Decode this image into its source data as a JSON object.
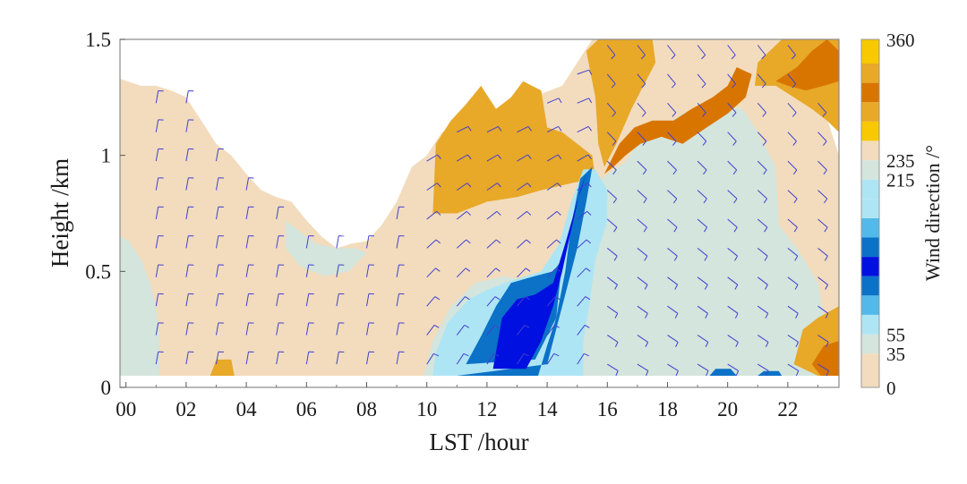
{
  "chart_data": {
    "type": "heatmap",
    "title": "",
    "xlabel": "LST /hour",
    "ylabel": "Height /km",
    "xlim": [
      -0.2,
      23.7
    ],
    "ylim": [
      0,
      1.5
    ],
    "x_ticks": [
      "00",
      "02",
      "04",
      "06",
      "08",
      "10",
      "12",
      "14",
      "16",
      "18",
      "20",
      "22"
    ],
    "x_tick_values": [
      0,
      2,
      4,
      6,
      8,
      10,
      12,
      14,
      16,
      18,
      20,
      22
    ],
    "y_ticks": [
      "0",
      "0.5",
      "1",
      "1.5"
    ],
    "y_tick_values": [
      0,
      0.5,
      1,
      1.5
    ],
    "colorbar": {
      "label": "Wind direction /°",
      "tick_labels": [
        "0",
        "35",
        "55",
        "215",
        "235",
        "360"
      ],
      "tick_values": [
        0,
        35,
        55,
        215,
        235,
        360
      ],
      "levels": [
        {
          "from": 0,
          "to": 35,
          "color": "#f2dcbd"
        },
        {
          "from": 35,
          "to": 55,
          "color": "#d3e5dc"
        },
        {
          "from": 55,
          "to": 75,
          "color": "#aee5f5"
        },
        {
          "from": 75,
          "to": 95,
          "color": "#52b9ea"
        },
        {
          "from": 95,
          "to": 115,
          "color": "#0b72c7"
        },
        {
          "from": 115,
          "to": 135,
          "color": "#0010e0"
        },
        {
          "from": 135,
          "to": 155,
          "color": "#0b72c7"
        },
        {
          "from": 155,
          "to": 175,
          "color": "#52b9ea"
        },
        {
          "from": 175,
          "to": 195,
          "color": "#aee5f5"
        },
        {
          "from": 195,
          "to": 215,
          "color": "#aee5f5"
        },
        {
          "from": 215,
          "to": 235,
          "color": "#d3e5dc"
        },
        {
          "from": 235,
          "to": 255,
          "color": "#f2dcbd"
        },
        {
          "from": 255,
          "to": 275,
          "color": "#f8c800"
        },
        {
          "from": 275,
          "to": 295,
          "color": "#e8a828"
        },
        {
          "from": 295,
          "to": 315,
          "color": "#d87500"
        },
        {
          "from": 315,
          "to": 335,
          "color": "#e8a828"
        },
        {
          "from": 335,
          "to": 360,
          "color": "#f8c800"
        }
      ]
    },
    "regions": [
      {
        "name": "data-coverage-beige",
        "color": "#f2dcbd",
        "points": [
          [
            -0.2,
            0.05
          ],
          [
            23.7,
            0.05
          ],
          [
            23.7,
            1.0
          ],
          [
            23.2,
            1.2
          ],
          [
            22.5,
            1.5
          ],
          [
            15.5,
            1.5
          ],
          [
            14.5,
            1.3
          ],
          [
            13.5,
            1.25
          ],
          [
            12.5,
            1.15
          ],
          [
            11.5,
            1.15
          ],
          [
            10.5,
            1.1
          ],
          [
            10,
            1.0
          ],
          [
            9.5,
            0.95
          ],
          [
            9,
            0.8
          ],
          [
            8.5,
            0.7
          ],
          [
            8,
            0.63
          ],
          [
            7.5,
            0.62
          ],
          [
            7,
            0.6
          ],
          [
            6.5,
            0.65
          ],
          [
            6,
            0.72
          ],
          [
            5.5,
            0.8
          ],
          [
            5,
            0.82
          ],
          [
            4.5,
            0.85
          ],
          [
            4,
            0.92
          ],
          [
            3.5,
            1.0
          ],
          [
            3,
            1.05
          ],
          [
            2.5,
            1.15
          ],
          [
            2,
            1.25
          ],
          [
            1.5,
            1.28
          ],
          [
            1,
            1.3
          ],
          [
            0.5,
            1.3
          ],
          [
            -0.2,
            1.33
          ]
        ]
      },
      {
        "name": "green-left-low",
        "color": "#d3e5dc",
        "points": [
          [
            -0.2,
            0.05
          ],
          [
            1.1,
            0.05
          ],
          [
            1.1,
            0.22
          ],
          [
            1.0,
            0.35
          ],
          [
            0.8,
            0.45
          ],
          [
            0.5,
            0.55
          ],
          [
            0.1,
            0.63
          ],
          [
            -0.2,
            0.65
          ]
        ]
      },
      {
        "name": "green-morning-blob",
        "color": "#d3e5dc",
        "points": [
          [
            5.3,
            0.72
          ],
          [
            5.7,
            0.68
          ],
          [
            6.3,
            0.62
          ],
          [
            7.0,
            0.6
          ],
          [
            7.6,
            0.6
          ],
          [
            8.0,
            0.58
          ],
          [
            7.4,
            0.5
          ],
          [
            6.6,
            0.48
          ],
          [
            5.8,
            0.52
          ],
          [
            5.3,
            0.6
          ]
        ]
      },
      {
        "name": "orange-midday",
        "color": "#e8a828",
        "points": [
          [
            10.2,
            0.75
          ],
          [
            10.3,
            1.05
          ],
          [
            10.8,
            1.15
          ],
          [
            11.3,
            1.22
          ],
          [
            11.8,
            1.3
          ],
          [
            12.3,
            1.2
          ],
          [
            12.8,
            1.25
          ],
          [
            13.2,
            1.32
          ],
          [
            13.8,
            1.28
          ],
          [
            14.0,
            1.12
          ],
          [
            14.5,
            1.1
          ],
          [
            15.0,
            1.05
          ],
          [
            15.5,
            1.0
          ],
          [
            15.6,
            0.9
          ],
          [
            14.8,
            0.88
          ],
          [
            13.8,
            0.85
          ],
          [
            13.0,
            0.82
          ],
          [
            12.0,
            0.8
          ],
          [
            11.0,
            0.75
          ]
        ]
      },
      {
        "name": "green-afternoon",
        "color": "#d3e5dc",
        "points": [
          [
            9.9,
            0.05
          ],
          [
            23.7,
            0.05
          ],
          [
            23.7,
            0.25
          ],
          [
            23.2,
            0.3
          ],
          [
            23.0,
            0.45
          ],
          [
            22.3,
            0.6
          ],
          [
            21.7,
            0.7
          ],
          [
            21.6,
            0.95
          ],
          [
            21.0,
            1.1
          ],
          [
            20.5,
            1.2
          ],
          [
            19.8,
            1.22
          ],
          [
            18.5,
            1.18
          ],
          [
            17.5,
            1.1
          ],
          [
            17.0,
            1.05
          ],
          [
            16.6,
            0.97
          ],
          [
            16.0,
            0.92
          ],
          [
            15.5,
            0.85
          ],
          [
            15.2,
            0.72
          ],
          [
            14.8,
            0.55
          ],
          [
            14.4,
            0.45
          ],
          [
            13.6,
            0.45
          ],
          [
            12.6,
            0.48
          ],
          [
            11.6,
            0.45
          ],
          [
            10.8,
            0.35
          ],
          [
            10.2,
            0.2
          ]
        ]
      },
      {
        "name": "lightblue-core",
        "color": "#aee5f5",
        "points": [
          [
            10.2,
            0.05
          ],
          [
            15.2,
            0.05
          ],
          [
            15.2,
            0.2
          ],
          [
            15.4,
            0.35
          ],
          [
            15.6,
            0.55
          ],
          [
            16.0,
            0.72
          ],
          [
            16.0,
            0.85
          ],
          [
            15.6,
            0.94
          ],
          [
            15.2,
            0.94
          ],
          [
            14.8,
            0.8
          ],
          [
            14.4,
            0.62
          ],
          [
            13.8,
            0.5
          ],
          [
            12.8,
            0.46
          ],
          [
            12.0,
            0.42
          ],
          [
            11.4,
            0.38
          ],
          [
            10.7,
            0.28
          ],
          [
            10.3,
            0.15
          ]
        ]
      },
      {
        "name": "blue-band",
        "color": "#0b72c7",
        "points": [
          [
            11.0,
            0.05
          ],
          [
            13.7,
            0.05
          ],
          [
            14.0,
            0.18
          ],
          [
            14.3,
            0.3
          ],
          [
            14.6,
            0.5
          ],
          [
            14.8,
            0.7
          ],
          [
            15.1,
            0.9
          ],
          [
            15.5,
            0.95
          ],
          [
            15.3,
            0.8
          ],
          [
            15.0,
            0.6
          ],
          [
            14.6,
            0.4
          ],
          [
            14.2,
            0.2
          ],
          [
            14.0,
            0.1
          ]
        ]
      },
      {
        "name": "blue-band-wide",
        "color": "#0b72c7",
        "points": [
          [
            11.3,
            0.1
          ],
          [
            11.8,
            0.22
          ],
          [
            12.3,
            0.35
          ],
          [
            12.8,
            0.45
          ],
          [
            13.6,
            0.48
          ],
          [
            14.2,
            0.5
          ],
          [
            14.5,
            0.55
          ],
          [
            14.3,
            0.3
          ],
          [
            13.6,
            0.12
          ]
        ]
      },
      {
        "name": "deepblue-core",
        "color": "#0010e0",
        "points": [
          [
            12.2,
            0.08
          ],
          [
            13.3,
            0.08
          ],
          [
            13.8,
            0.2
          ],
          [
            14.2,
            0.35
          ],
          [
            14.5,
            0.5
          ],
          [
            14.8,
            0.68
          ],
          [
            15.1,
            0.85
          ],
          [
            15.3,
            0.92
          ],
          [
            15.0,
            0.8
          ],
          [
            14.6,
            0.62
          ],
          [
            14.2,
            0.45
          ],
          [
            13.6,
            0.4
          ],
          [
            13.0,
            0.38
          ],
          [
            12.5,
            0.3
          ]
        ]
      },
      {
        "name": "orange-late-top",
        "color": "#e8a828",
        "points": [
          [
            15.3,
            1.45
          ],
          [
            15.7,
            1.5
          ],
          [
            17.5,
            1.5
          ],
          [
            17.6,
            1.4
          ],
          [
            17.2,
            1.3
          ],
          [
            16.8,
            1.2
          ],
          [
            16.3,
            1.05
          ],
          [
            15.9,
            0.95
          ],
          [
            15.7,
            1.05
          ],
          [
            15.6,
            1.25
          ]
        ]
      },
      {
        "name": "darkorange-ridge",
        "color": "#d87500",
        "points": [
          [
            15.9,
            0.92
          ],
          [
            16.4,
            1.05
          ],
          [
            16.9,
            1.12
          ],
          [
            17.5,
            1.15
          ],
          [
            18.2,
            1.15
          ],
          [
            18.8,
            1.2
          ],
          [
            19.5,
            1.25
          ],
          [
            20.0,
            1.3
          ],
          [
            20.3,
            1.38
          ],
          [
            20.8,
            1.35
          ],
          [
            20.6,
            1.25
          ],
          [
            20.0,
            1.18
          ],
          [
            19.3,
            1.12
          ],
          [
            18.5,
            1.05
          ],
          [
            17.8,
            1.08
          ],
          [
            17.1,
            1.05
          ],
          [
            16.6,
            1.0
          ],
          [
            16.2,
            0.95
          ]
        ]
      },
      {
        "name": "orange-right-top",
        "color": "#e8a828",
        "points": [
          [
            20.9,
            1.3
          ],
          [
            21.0,
            1.4
          ],
          [
            21.8,
            1.5
          ],
          [
            23.7,
            1.5
          ],
          [
            23.7,
            1.1
          ],
          [
            23.3,
            1.15
          ],
          [
            22.8,
            1.2
          ],
          [
            22.2,
            1.25
          ],
          [
            21.6,
            1.3
          ]
        ]
      },
      {
        "name": "darkorange-right-top",
        "color": "#d87500",
        "points": [
          [
            21.6,
            1.32
          ],
          [
            22.3,
            1.38
          ],
          [
            22.8,
            1.45
          ],
          [
            23.3,
            1.5
          ],
          [
            23.7,
            1.45
          ],
          [
            23.7,
            1.32
          ],
          [
            23.2,
            1.3
          ],
          [
            22.6,
            1.28
          ],
          [
            22.0,
            1.3
          ]
        ]
      },
      {
        "name": "orange-right-low",
        "color": "#e8a828",
        "points": [
          [
            22.2,
            0.1
          ],
          [
            22.5,
            0.25
          ],
          [
            23.0,
            0.3
          ],
          [
            23.7,
            0.35
          ],
          [
            23.7,
            0.05
          ],
          [
            23.0,
            0.05
          ]
        ]
      },
      {
        "name": "darkorange-right-low",
        "color": "#d87500",
        "points": [
          [
            22.8,
            0.1
          ],
          [
            23.2,
            0.18
          ],
          [
            23.7,
            0.2
          ],
          [
            23.7,
            0.05
          ],
          [
            23.1,
            0.05
          ]
        ]
      },
      {
        "name": "blue-spots-20h",
        "color": "#0b72c7",
        "points": [
          [
            19.4,
            0.05
          ],
          [
            19.6,
            0.08
          ],
          [
            20.1,
            0.08
          ],
          [
            20.3,
            0.05
          ]
        ]
      },
      {
        "name": "blue-spots-21h",
        "color": "#0b72c7",
        "points": [
          [
            21.0,
            0.05
          ],
          [
            21.2,
            0.07
          ],
          [
            21.7,
            0.07
          ],
          [
            21.8,
            0.05
          ]
        ]
      },
      {
        "name": "orange-spot-3h",
        "color": "#e8a828",
        "points": [
          [
            2.8,
            0.05
          ],
          [
            3.0,
            0.12
          ],
          [
            3.5,
            0.12
          ],
          [
            3.6,
            0.05
          ]
        ]
      }
    ],
    "wind_barb_columns": [
      1,
      2,
      3,
      4,
      5,
      6,
      7,
      8,
      9,
      10,
      11,
      12,
      13,
      14,
      15,
      16,
      17,
      18,
      19,
      20,
      21,
      22,
      23
    ],
    "grid": false,
    "colorbar_placement": "right"
  }
}
